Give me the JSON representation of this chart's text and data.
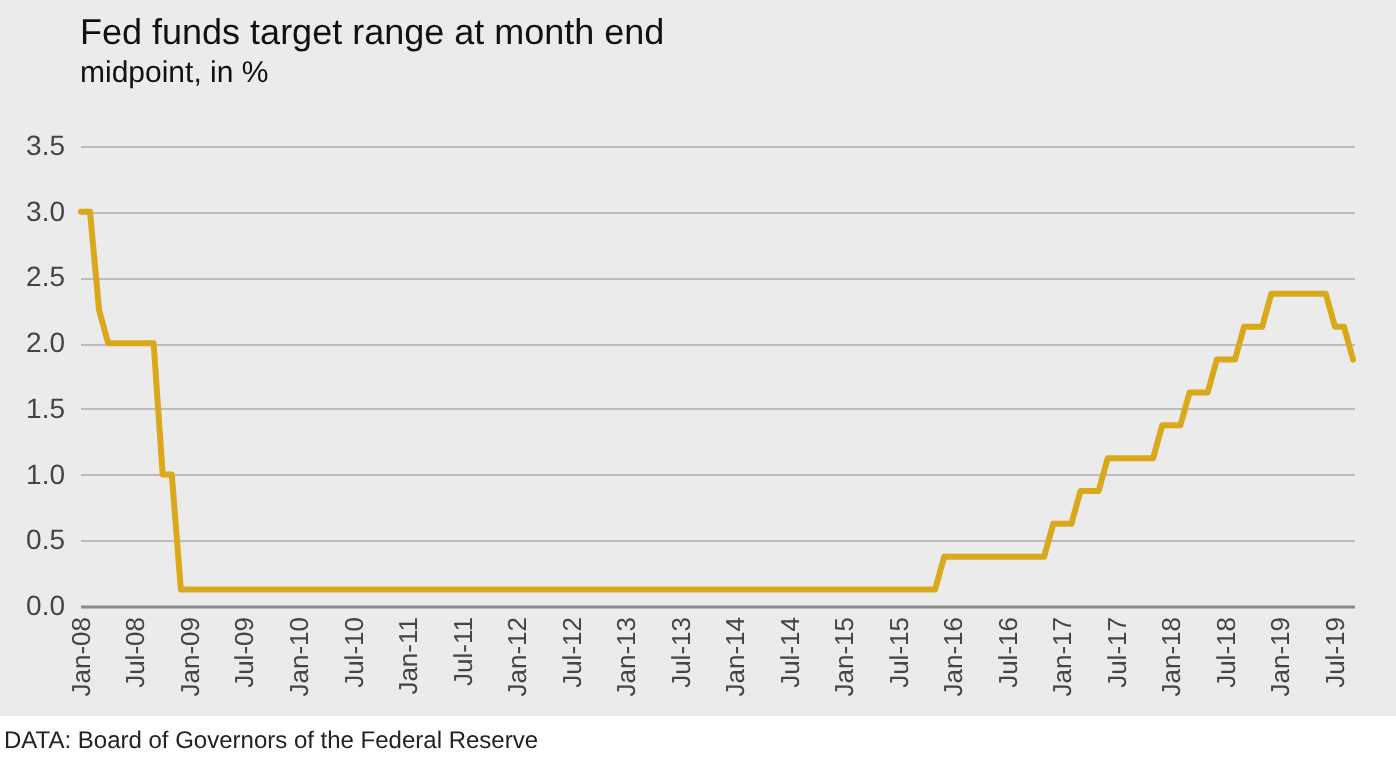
{
  "chart_data": {
    "type": "line",
    "title": "Fed funds target range at month end",
    "subtitle": "midpoint, in %",
    "annotations": [
      "DATA: Board of Governors of the Federal Reserve"
    ],
    "categories": [
      "Jan-08",
      null,
      null,
      null,
      null,
      null,
      "Jul-08",
      null,
      null,
      null,
      null,
      null,
      "Jan-09",
      null,
      null,
      null,
      null,
      null,
      "Jul-09",
      null,
      null,
      null,
      null,
      null,
      "Jan-10",
      null,
      null,
      null,
      null,
      null,
      "Jul-10",
      null,
      null,
      null,
      null,
      null,
      "Jan-11",
      null,
      null,
      null,
      null,
      null,
      "Jul-11",
      null,
      null,
      null,
      null,
      null,
      "Jan-12",
      null,
      null,
      null,
      null,
      null,
      "Jul-12",
      null,
      null,
      null,
      null,
      null,
      "Jan-13",
      null,
      null,
      null,
      null,
      null,
      "Jul-13",
      null,
      null,
      null,
      null,
      null,
      "Jan-14",
      null,
      null,
      null,
      null,
      null,
      "Jul-14",
      null,
      null,
      null,
      null,
      null,
      "Jan-15",
      null,
      null,
      null,
      null,
      null,
      "Jul-15",
      null,
      null,
      null,
      null,
      null,
      "Jan-16",
      null,
      null,
      null,
      null,
      null,
      "Jul-16",
      null,
      null,
      null,
      null,
      null,
      "Jan-17",
      null,
      null,
      null,
      null,
      null,
      "Jul-17",
      null,
      null,
      null,
      null,
      null,
      "Jan-18",
      null,
      null,
      null,
      null,
      null,
      "Jul-18",
      null,
      null,
      null,
      null,
      null,
      "Jan-19",
      null,
      null,
      null,
      null,
      null,
      "Jul-19",
      null,
      null
    ],
    "series": [
      {
        "color": "#d9a91b",
        "values": [
          3.0,
          3.0,
          2.25,
          2.0,
          2.0,
          2.0,
          2.0,
          2.0,
          2.0,
          1.0,
          1.0,
          0.125,
          0.125,
          0.125,
          0.125,
          0.125,
          0.125,
          0.125,
          0.125,
          0.125,
          0.125,
          0.125,
          0.125,
          0.125,
          0.125,
          0.125,
          0.125,
          0.125,
          0.125,
          0.125,
          0.125,
          0.125,
          0.125,
          0.125,
          0.125,
          0.125,
          0.125,
          0.125,
          0.125,
          0.125,
          0.125,
          0.125,
          0.125,
          0.125,
          0.125,
          0.125,
          0.125,
          0.125,
          0.125,
          0.125,
          0.125,
          0.125,
          0.125,
          0.125,
          0.125,
          0.125,
          0.125,
          0.125,
          0.125,
          0.125,
          0.125,
          0.125,
          0.125,
          0.125,
          0.125,
          0.125,
          0.125,
          0.125,
          0.125,
          0.125,
          0.125,
          0.125,
          0.125,
          0.125,
          0.125,
          0.125,
          0.125,
          0.125,
          0.125,
          0.125,
          0.125,
          0.125,
          0.125,
          0.125,
          0.125,
          0.125,
          0.125,
          0.125,
          0.125,
          0.125,
          0.125,
          0.125,
          0.125,
          0.125,
          0.125,
          0.375,
          0.375,
          0.375,
          0.375,
          0.375,
          0.375,
          0.375,
          0.375,
          0.375,
          0.375,
          0.375,
          0.375,
          0.625,
          0.625,
          0.625,
          0.875,
          0.875,
          0.875,
          1.125,
          1.125,
          1.125,
          1.125,
          1.125,
          1.125,
          1.375,
          1.375,
          1.375,
          1.625,
          1.625,
          1.625,
          1.875,
          1.875,
          1.875,
          2.125,
          2.125,
          2.125,
          2.375,
          2.375,
          2.375,
          2.375,
          2.375,
          2.375,
          2.375,
          2.125,
          2.125,
          1.875
        ]
      }
    ],
    "ylim": [
      0,
      3.5
    ],
    "yticks": [
      {
        "value": 0,
        "label": "0.0"
      },
      {
        "value": 0.5,
        "label": "0.5"
      },
      {
        "value": 1,
        "label": "1.0"
      },
      {
        "value": 1.5,
        "label": "1.5"
      },
      {
        "value": 2,
        "label": "2.0"
      },
      {
        "value": 2.5,
        "label": "2.5"
      },
      {
        "value": 3,
        "label": "3.0"
      },
      {
        "value": 3.5,
        "label": "3.5"
      }
    ],
    "grid": "y",
    "marker": "none",
    "line_style": "solid"
  }
}
